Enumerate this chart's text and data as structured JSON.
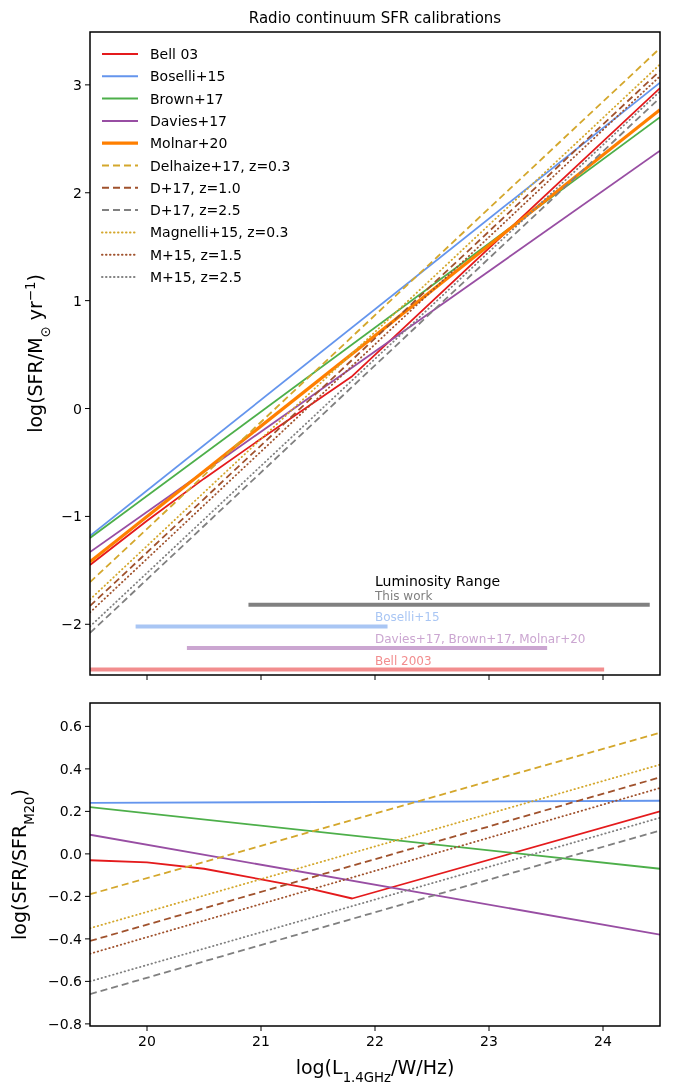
{
  "chart_data": [
    {
      "type": "line",
      "title": "Radio continuum SFR calibrations",
      "ylabel": "log(SFR/M$_{⊙}$ yr$^{−1}$)",
      "xlim": [
        19.5,
        24.5
      ],
      "xticks": [
        20,
        21,
        22,
        23,
        24
      ],
      "ylim": [
        -2.47,
        3.49
      ],
      "yticks": [
        {
          "value": -2,
          "label": "−2"
        },
        {
          "value": -1,
          "label": "−1"
        },
        0,
        1,
        2,
        3
      ],
      "tick_labels": "y",
      "legend": "top left",
      "grid": false,
      "annotations": [
        "Luminosity Range"
      ],
      "series": [
        {
          "name": "Bell 03",
          "color": "#e41a1c",
          "line_style": "solid",
          "x": [
            19.5,
            20,
            20.5,
            21,
            21.4,
            21.8,
            24.5
          ],
          "values": [
            -1.45,
            -1.04,
            -0.65,
            -0.28,
            0.01,
            0.3,
            2.97
          ]
        },
        {
          "name": "Boselli+15",
          "color": "#6495ed",
          "line_style": "solid",
          "x": [
            19.5,
            24.5
          ],
          "values": [
            -1.18,
            3.02
          ]
        },
        {
          "name": "Brown+17",
          "color": "#4daf4a",
          "line_style": "solid",
          "x": [
            19.5,
            24.5
          ],
          "values": [
            -1.2,
            2.7
          ]
        },
        {
          "name": "Davies+17",
          "color": "#984ea3",
          "line_style": "solid",
          "x": [
            19.5,
            24.5
          ],
          "values": [
            -1.33,
            2.39
          ]
        },
        {
          "name": "Molnar+20",
          "color": "#ff7f00",
          "line_style": "solid",
          "x": [
            19.5,
            24.5
          ],
          "values": [
            -1.42,
            2.77
          ]
        },
        {
          "name": "Delhaize+17, z=0.3",
          "color": "#d4a72c",
          "line_style": "dashed",
          "x": [
            19.5,
            24.5
          ],
          "values": [
            -1.61,
            3.34
          ]
        },
        {
          "name": "D+17, z=1.0",
          "color": "#a0522d",
          "line_style": "dashed",
          "x": [
            19.5,
            24.5
          ],
          "values": [
            -1.83,
            3.13
          ]
        },
        {
          "name": "D+17, z=2.5",
          "color": "#808080",
          "line_style": "dashed",
          "x": [
            19.5,
            24.5
          ],
          "values": [
            -2.08,
            2.88
          ]
        },
        {
          "name": "Magnelli+15, z=0.3",
          "color": "#d4a72c",
          "line_style": "dotted",
          "x": [
            19.5,
            24.5
          ],
          "values": [
            -1.77,
            3.19
          ]
        },
        {
          "name": "M+15, z=1.5",
          "color": "#a0522d",
          "line_style": "dotted",
          "x": [
            19.5,
            24.5
          ],
          "values": [
            -1.89,
            3.08
          ]
        },
        {
          "name": "M+15, z=2.5",
          "color": "#808080",
          "line_style": "dotted",
          "x": [
            19.5,
            24.5
          ],
          "values": [
            -2.02,
            2.94
          ]
        },
        {
          "type": "line",
          "name": "This work",
          "color": "#808080",
          "x": [
            20.89,
            24.41
          ],
          "values": [
            -1.82,
            -1.82
          ]
        },
        {
          "type": "line",
          "name": "Boselli+15",
          "color": "#a9c6f4",
          "x": [
            19.9,
            22.11
          ],
          "values": [
            -2.02,
            -2.02
          ]
        },
        {
          "type": "line",
          "name": "Davies+17, Brown+17, Molnar+20",
          "color": "#cba6d1",
          "x": [
            20.35,
            23.51
          ],
          "values": [
            -2.22,
            -2.22
          ]
        },
        {
          "type": "line",
          "name": "Bell 2003",
          "color": "#f28d8e",
          "x": [
            19.5,
            24.01
          ],
          "values": [
            -2.42,
            -2.42
          ]
        }
      ]
    },
    {
      "type": "line",
      "xlabel": "log(L$_{1.4GHz}$/W/Hz)",
      "ylabel": "log(SFR/SFR$_{M20}$)",
      "xlim": [
        19.5,
        24.5
      ],
      "xticks": [
        20,
        21,
        22,
        23,
        24
      ],
      "ylim": [
        -0.81,
        0.71
      ],
      "yticks": [
        {
          "value": -0.8,
          "label": "−0.8"
        },
        {
          "value": -0.6,
          "label": "−0.6"
        },
        {
          "value": -0.4,
          "label": "−0.4"
        },
        {
          "value": -0.2,
          "label": "−0.2"
        },
        {
          "value": 0,
          "label": "0.0"
        },
        0.2,
        0.4,
        0.6
      ],
      "grid": false,
      "series": [
        {
          "color": "#e41a1c",
          "line_style": "solid",
          "x": [
            19.5,
            20,
            20.5,
            21,
            21.4,
            21.8,
            24.5
          ],
          "values": [
            -0.03,
            -0.04,
            -0.07,
            -0.12,
            -0.16,
            -0.21,
            0.2
          ]
        },
        {
          "color": "#6495ed",
          "line_style": "solid",
          "x": [
            19.5,
            24.5
          ],
          "values": [
            0.24,
            0.25
          ]
        },
        {
          "color": "#4daf4a",
          "line_style": "solid",
          "x": [
            19.5,
            24.5
          ],
          "values": [
            0.22,
            -0.07
          ]
        },
        {
          "color": "#984ea3",
          "line_style": "solid",
          "x": [
            19.5,
            24.5
          ],
          "values": [
            0.09,
            -0.38
          ]
        },
        {
          "color": "#d4a72c",
          "line_style": "dashed",
          "x": [
            19.5,
            24.5
          ],
          "values": [
            -0.19,
            0.57
          ]
        },
        {
          "color": "#a0522d",
          "line_style": "dashed",
          "x": [
            19.5,
            24.5
          ],
          "values": [
            -0.41,
            0.36
          ]
        },
        {
          "color": "#808080",
          "line_style": "dashed",
          "x": [
            19.5,
            24.5
          ],
          "values": [
            -0.66,
            0.11
          ]
        },
        {
          "color": "#d4a72c",
          "line_style": "dotted",
          "x": [
            19.5,
            24.5
          ],
          "values": [
            -0.35,
            0.42
          ]
        },
        {
          "color": "#a0522d",
          "line_style": "dotted",
          "x": [
            19.5,
            24.5
          ],
          "values": [
            -0.47,
            0.31
          ]
        },
        {
          "color": "#808080",
          "line_style": "dotted",
          "x": [
            19.5,
            24.5
          ],
          "values": [
            -0.6,
            0.17
          ]
        }
      ]
    }
  ]
}
